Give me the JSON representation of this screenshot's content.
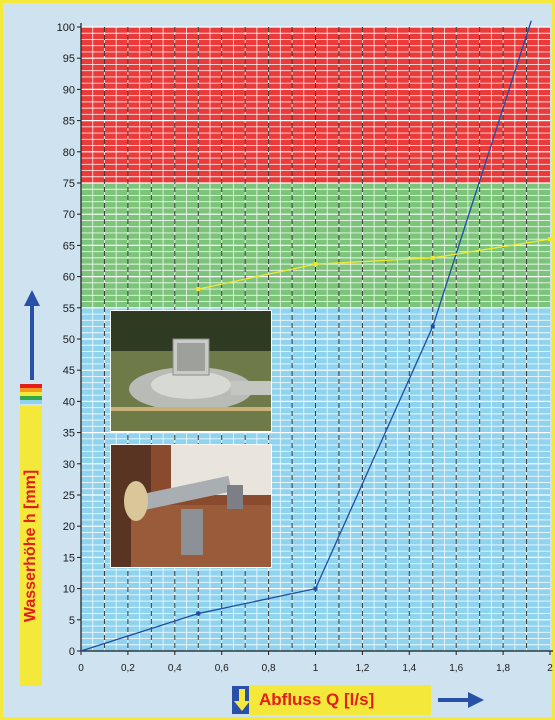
{
  "chart_data": {
    "type": "line",
    "xlabel": "Abfluss Q [l/s]",
    "ylabel": "Wasserhöhe h [mm]",
    "xlim": [
      0,
      2
    ],
    "ylim": [
      0,
      100
    ],
    "x_ticks": [
      0,
      0.2,
      0.4,
      0.6,
      0.8,
      1,
      1.2,
      1.4,
      1.6,
      1.8,
      2
    ],
    "x_tick_labels": [
      "0",
      "0,2",
      "0,4",
      "0,6",
      "0,8",
      "1",
      "1,2",
      "1,4",
      "1,6",
      "1,8",
      "2"
    ],
    "y_ticks": [
      0,
      5,
      10,
      15,
      20,
      25,
      30,
      35,
      40,
      45,
      50,
      55,
      60,
      65,
      70,
      75,
      80,
      85,
      90,
      95,
      100
    ],
    "y_tick_labels": [
      "0",
      "5",
      "10",
      "15",
      "20",
      "25",
      "30",
      "35",
      "40",
      "45",
      "50",
      "55",
      "60",
      "65",
      "70",
      "75",
      "80",
      "85",
      "90",
      "95",
      "100"
    ],
    "bands": [
      {
        "from": 0,
        "to": 55,
        "color": "#8fd3ef"
      },
      {
        "from": 55,
        "to": 75,
        "color": "#7cc47a"
      },
      {
        "from": 75,
        "to": 100,
        "color": "#ea3a3a"
      }
    ],
    "grid": true,
    "series": [
      {
        "color": "#1f4fa3",
        "x": [
          0,
          0.5,
          1,
          1.5,
          1.92
        ],
        "y": [
          0,
          6,
          10,
          52,
          101
        ]
      },
      {
        "color": "#f2e830",
        "x": [
          0.5,
          1,
          1.5,
          2
        ],
        "y": [
          58,
          62,
          63,
          66
        ]
      }
    ]
  },
  "colors": {
    "background": "#cfe2f0",
    "frame": "#f4e93a",
    "label_text": "#e31d1a",
    "arrow": "#2850a6"
  },
  "icons": [
    "up-arrow-icon",
    "down-arrow-icon",
    "right-arrow-icon",
    "color-legend-icon"
  ],
  "photos": [
    "floor-drain-photo",
    "pipe-connection-photo"
  ]
}
